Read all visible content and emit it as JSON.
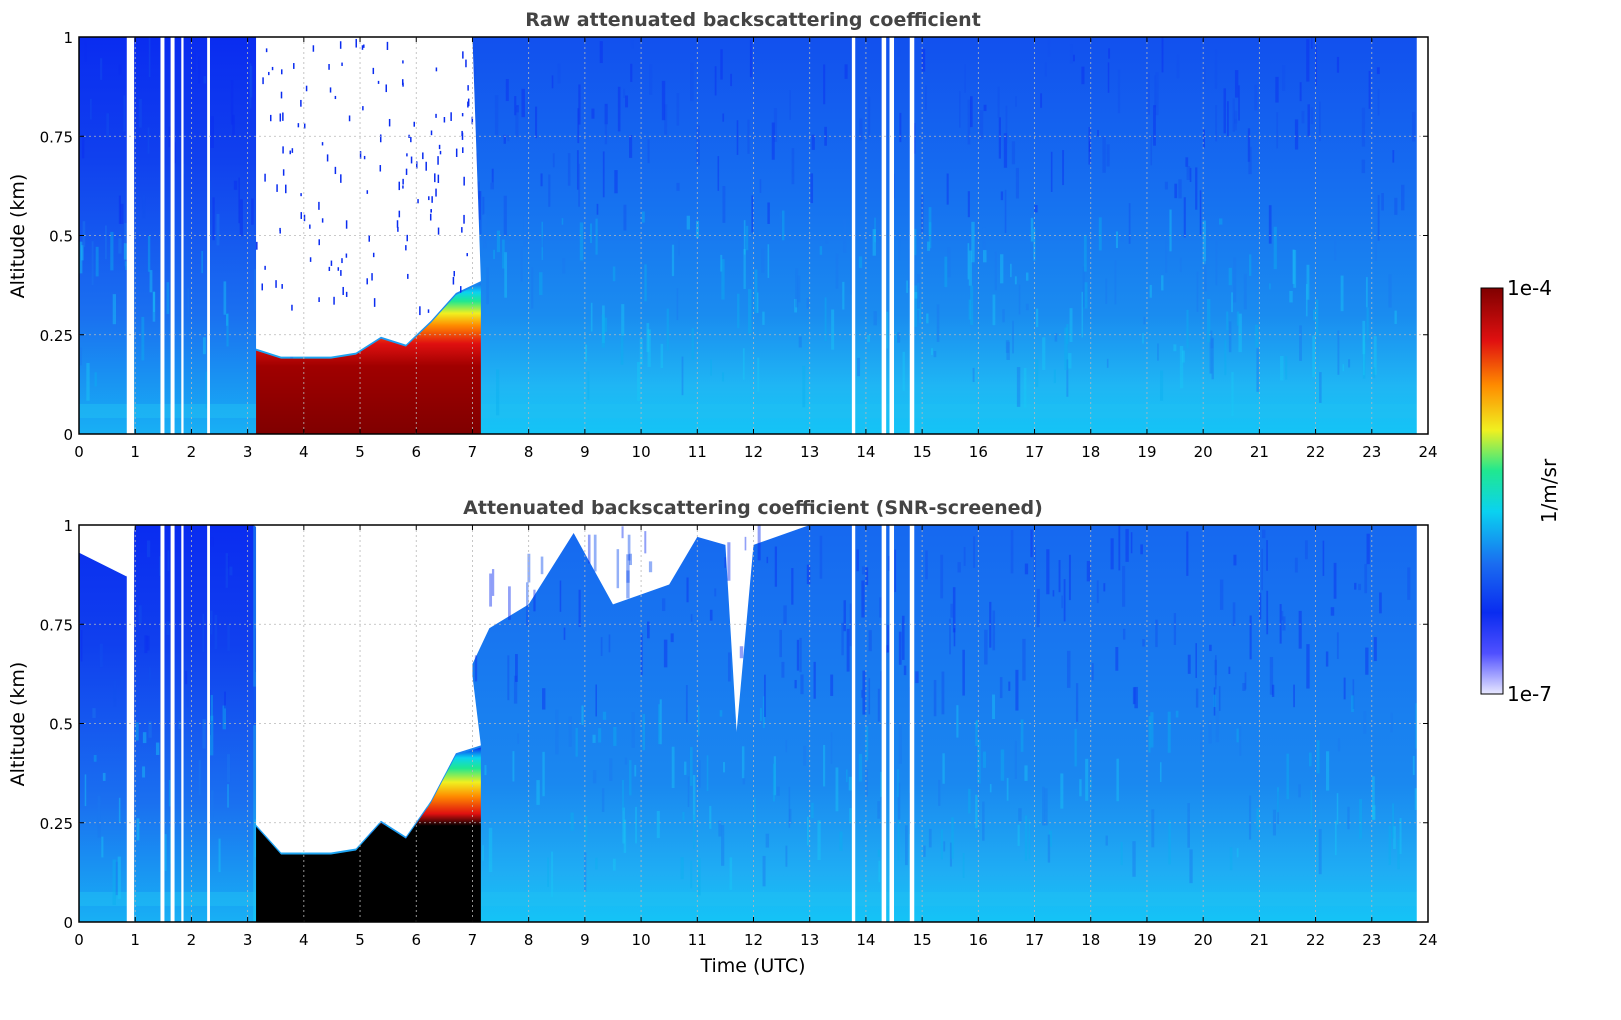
{
  "colors": {
    "white": "#ffffff",
    "blue": "#0a2cf0",
    "mid_blue": "#1a6cf0",
    "cyan": "#0ad2f0",
    "light_cyan": "#18c8f6",
    "green": "#20e890",
    "yellow": "#f0f020",
    "orange": "#ff8c00",
    "red": "#e01010",
    "dark_red": "#800000",
    "black": "#000000"
  },
  "colorbar": {
    "max_label": "1e-4",
    "min_label": "1e-7",
    "unit_label": "1/m/sr",
    "scale": "log",
    "colormap": "jet"
  },
  "chart_data": [
    {
      "type": "heatmap",
      "title": "Raw attenuated backscattering coefficient",
      "xlabel": "",
      "ylabel": "Altitude (km)",
      "xlim": [
        0,
        24
      ],
      "ylim": [
        0,
        1
      ],
      "x_ticks": [
        0,
        1,
        2,
        3,
        4,
        5,
        6,
        7,
        8,
        9,
        10,
        11,
        12,
        13,
        14,
        15,
        16,
        17,
        18,
        19,
        20,
        21,
        22,
        23,
        24
      ],
      "x_tick_labels": [
        "0",
        "1",
        "2",
        "3",
        "4",
        "5",
        "6",
        "7",
        "8",
        "9",
        "10",
        "11",
        "12",
        "13",
        "14",
        "15",
        "16",
        "17",
        "18",
        "19",
        "20",
        "21",
        "22",
        "23",
        "24"
      ],
      "y_ticks": [
        0,
        0.25,
        0.5,
        0.75,
        1
      ],
      "y_tick_labels": [
        "0",
        "0.25",
        "0.5",
        "0.75",
        "1"
      ],
      "grid": true,
      "data_end_x": 23.8,
      "gap_columns": [
        [
          0.85,
          0.98
        ],
        [
          1.45,
          1.52
        ],
        [
          1.63,
          1.7
        ],
        [
          1.82,
          1.86
        ],
        [
          2.28,
          2.33
        ],
        [
          13.75,
          13.81
        ],
        [
          14.28,
          14.36
        ],
        [
          14.42,
          14.5
        ],
        [
          14.78,
          14.86
        ]
      ],
      "fog_layer": {
        "x_start": 3.15,
        "x_end": 7.15,
        "top_km": [
          0.21,
          0.19,
          0.19,
          0.19,
          0.2,
          0.24,
          0.22,
          0.28,
          0.35,
          0.38
        ],
        "core_top_km": [
          0.16,
          0.13,
          0.13,
          0.13,
          0.13,
          0.17,
          0.14,
          0.19,
          0.26,
          0.3
        ]
      },
      "cloud_free_region": {
        "x_start": 3.15,
        "x_end": 7.0,
        "above_km": 0.21
      }
    },
    {
      "type": "heatmap",
      "title": "Attenuated backscattering coefficient (SNR-screened)",
      "xlabel": "Time (UTC)",
      "ylabel": "Altitude (km)",
      "xlim": [
        0,
        24
      ],
      "ylim": [
        0,
        1
      ],
      "x_ticks": [
        0,
        1,
        2,
        3,
        4,
        5,
        6,
        7,
        8,
        9,
        10,
        11,
        12,
        13,
        14,
        15,
        16,
        17,
        18,
        19,
        20,
        21,
        22,
        23,
        24
      ],
      "x_tick_labels": [
        "0",
        "1",
        "2",
        "3",
        "4",
        "5",
        "6",
        "7",
        "8",
        "9",
        "10",
        "11",
        "12",
        "13",
        "14",
        "15",
        "16",
        "17",
        "18",
        "19",
        "20",
        "21",
        "22",
        "23",
        "24"
      ],
      "y_ticks": [
        0,
        0.25,
        0.5,
        0.75,
        1
      ],
      "y_tick_labels": [
        "0",
        "0.25",
        "0.5",
        "0.75",
        "1"
      ],
      "grid": true,
      "data_end_x": 23.8,
      "gap_columns": [
        [
          0.85,
          0.98
        ],
        [
          1.45,
          1.52
        ],
        [
          1.63,
          1.7
        ],
        [
          1.82,
          1.86
        ],
        [
          2.28,
          2.33
        ],
        [
          13.75,
          13.81
        ],
        [
          14.28,
          14.36
        ],
        [
          14.42,
          14.5
        ],
        [
          14.78,
          14.86
        ]
      ],
      "screened_top_km": {
        "x": [
          0,
          0.85,
          1.0,
          2.9,
          3.1,
          7.0,
          7.3,
          8.0,
          8.8,
          9.5,
          10.5,
          11.0,
          11.5,
          11.7,
          12.0,
          13.0,
          24
        ],
        "y": [
          0.93,
          0.87,
          1.0,
          1.0,
          1.0,
          0.65,
          0.74,
          0.8,
          0.98,
          0.8,
          0.85,
          0.97,
          0.95,
          0.48,
          0.95,
          1.0,
          1.0
        ]
      },
      "fog_layer": {
        "x_start": 3.15,
        "x_end": 7.15,
        "top_km": [
          0.24,
          0.17,
          0.17,
          0.17,
          0.18,
          0.25,
          0.21,
          0.3,
          0.42,
          0.44
        ],
        "core_top_km": [
          0.14,
          0.12,
          0.12,
          0.12,
          0.12,
          0.16,
          0.13,
          0.2,
          0.28,
          0.3
        ]
      }
    }
  ]
}
